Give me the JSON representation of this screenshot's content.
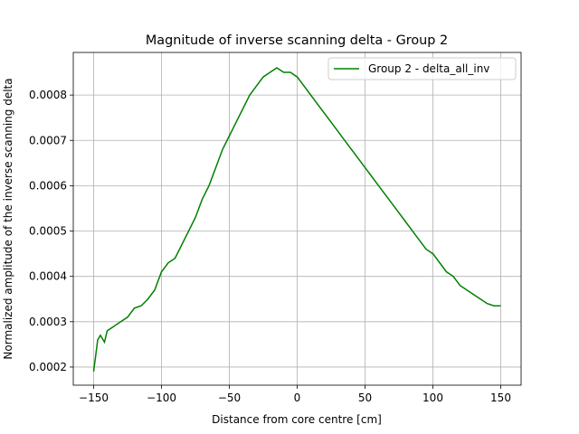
{
  "chart_data": {
    "type": "line",
    "title": "Magnitude of inverse scanning delta - Group 2",
    "x_label": "Distance from core centre [cm]",
    "y_label": "Normalized amplitude of the inverse scanning delta",
    "x": [
      -150,
      -147,
      -145,
      -142,
      -140,
      -135,
      -130,
      -125,
      -120,
      -115,
      -110,
      -105,
      -100,
      -95,
      -90,
      -85,
      -80,
      -75,
      -70,
      -65,
      -60,
      -55,
      -50,
      -45,
      -40,
      -35,
      -30,
      -25,
      -20,
      -15,
      -10,
      -5,
      0,
      5,
      10,
      15,
      20,
      25,
      30,
      35,
      40,
      45,
      50,
      55,
      60,
      65,
      70,
      75,
      80,
      85,
      90,
      95,
      100,
      105,
      110,
      115,
      120,
      125,
      130,
      135,
      140,
      145,
      150
    ],
    "series": [
      {
        "name": "Group 2 - delta_all_inv",
        "color": "#008000",
        "values": [
          0.00019,
          0.00026,
          0.00027,
          0.000255,
          0.00028,
          0.00029,
          0.0003,
          0.00031,
          0.00033,
          0.000335,
          0.00035,
          0.00037,
          0.00041,
          0.00043,
          0.00044,
          0.00047,
          0.0005,
          0.00053,
          0.00057,
          0.0006,
          0.00064,
          0.00068,
          0.00071,
          0.00074,
          0.00077,
          0.0008,
          0.00082,
          0.00084,
          0.00085,
          0.00086,
          0.00085,
          0.00085,
          0.00084,
          0.00082,
          0.0008,
          0.00078,
          0.00076,
          0.00074,
          0.00072,
          0.0007,
          0.00068,
          0.00066,
          0.00064,
          0.00062,
          0.0006,
          0.00058,
          0.00056,
          0.00054,
          0.00052,
          0.0005,
          0.00048,
          0.00046,
          0.00045,
          0.00043,
          0.00041,
          0.0004,
          0.00038,
          0.00037,
          0.00036,
          0.00035,
          0.00034,
          0.000335,
          0.000335
        ]
      }
    ],
    "xlim": [
      -165,
      165
    ],
    "xticks": [
      {
        "value": -150,
        "label": "−150"
      },
      {
        "value": -100,
        "label": "−100"
      },
      {
        "value": -50,
        "label": "−50"
      },
      0,
      50,
      100,
      150
    ],
    "ylim": [
      0.00016,
      0.000894
    ],
    "yticks": [
      0.0002,
      0.0003,
      0.0004,
      0.0005,
      0.0006,
      0.0007,
      0.0008
    ],
    "grid": true,
    "legend": "upper right"
  }
}
